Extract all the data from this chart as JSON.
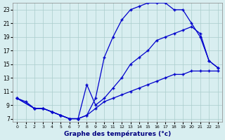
{
  "xlabel": "Graphe des températures (°c)",
  "background_color": "#d8eef0",
  "grid_color": "#aacccc",
  "line_color": "#0000cc",
  "xlim": [
    -0.5,
    23.5
  ],
  "ylim": [
    6.5,
    24.0
  ],
  "xticks": [
    0,
    1,
    2,
    3,
    4,
    5,
    6,
    7,
    8,
    9,
    10,
    11,
    12,
    13,
    14,
    15,
    16,
    17,
    18,
    19,
    20,
    21,
    22,
    23
  ],
  "yticks": [
    7,
    9,
    11,
    13,
    15,
    17,
    19,
    21,
    23
  ],
  "line1_x": [
    0,
    1,
    2,
    3,
    4,
    5,
    6,
    7,
    8,
    9,
    10,
    11,
    12,
    13,
    14,
    15,
    16,
    17,
    18,
    19,
    20,
    21,
    22,
    23
  ],
  "line1_y": [
    10.0,
    9.5,
    8.5,
    8.5,
    8.0,
    7.5,
    7.0,
    7.0,
    7.5,
    10.0,
    16.0,
    19.0,
    21.5,
    23.0,
    23.5,
    24.0,
    24.0,
    24.0,
    23.0,
    23.0,
    21.0,
    19.0,
    15.5,
    14.5
  ],
  "line2_x": [
    0,
    2,
    3,
    4,
    5,
    6,
    7,
    8,
    9,
    10,
    11,
    12,
    13,
    14,
    15,
    16,
    17,
    18,
    19,
    20,
    21,
    22,
    23
  ],
  "line2_y": [
    10.0,
    8.5,
    8.5,
    8.0,
    7.5,
    7.0,
    7.0,
    7.5,
    8.5,
    9.5,
    10.0,
    10.5,
    11.0,
    11.5,
    12.0,
    12.5,
    13.0,
    13.5,
    13.5,
    14.0,
    14.0,
    14.0,
    14.0
  ],
  "line3_x": [
    0,
    2,
    3,
    4,
    5,
    6,
    7,
    8,
    9,
    10,
    11,
    12,
    13,
    14,
    15,
    16,
    17,
    18,
    19,
    20,
    21,
    22,
    23
  ],
  "line3_y": [
    10.0,
    8.5,
    8.5,
    8.0,
    7.5,
    7.0,
    7.0,
    12.0,
    9.0,
    10.0,
    11.5,
    13.0,
    15.0,
    16.0,
    17.0,
    18.5,
    19.0,
    19.5,
    20.0,
    20.5,
    19.5,
    15.5,
    14.5
  ]
}
